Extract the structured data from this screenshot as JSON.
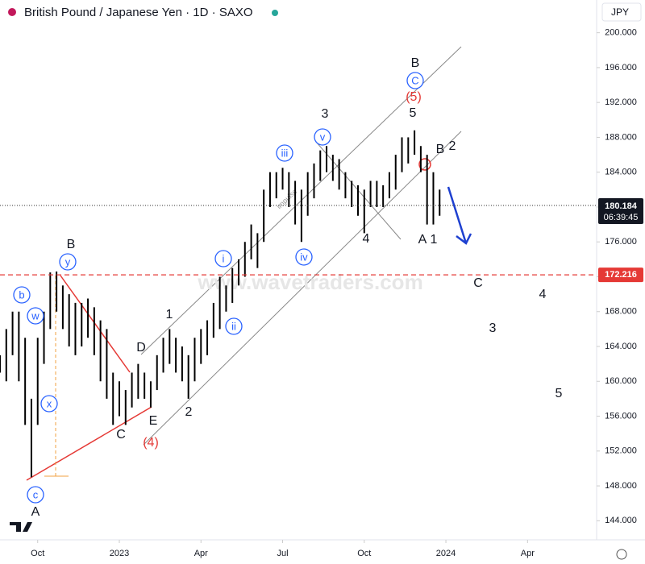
{
  "header": {
    "title": "British Pound / Japanese Yen · 1D · SAXO",
    "currency": "JPY"
  },
  "chart_data": {
    "type": "ohlc",
    "x": [
      -6,
      -5,
      -4,
      -3,
      -2,
      -1,
      0,
      1,
      2,
      3,
      4,
      5,
      6,
      7,
      8,
      9,
      10,
      11,
      12,
      13,
      14,
      15,
      16,
      17,
      18,
      19,
      20,
      21,
      22,
      23,
      24,
      25,
      26,
      27,
      28,
      29,
      30,
      31,
      32,
      33,
      34,
      35,
      36,
      37,
      38,
      39,
      40,
      41,
      42,
      43,
      44,
      45,
      46,
      47,
      48,
      49,
      50,
      51,
      52,
      53,
      54,
      55,
      56,
      57,
      58,
      59,
      60,
      61,
      62,
      63,
      64
    ],
    "high": [
      163,
      166,
      168,
      168,
      165,
      158,
      165,
      168,
      172.5,
      172.6,
      171,
      170,
      169,
      169,
      169.5,
      168.5,
      167,
      166,
      161,
      160,
      159,
      161,
      162,
      161,
      160,
      163,
      165,
      166,
      165,
      164,
      163,
      165,
      166,
      167,
      169,
      172,
      171,
      173,
      174,
      176,
      178,
      177,
      182,
      184,
      184,
      184.5,
      184,
      183,
      182,
      184,
      185,
      186.5,
      187,
      186,
      185.5,
      184,
      183,
      182.5,
      182,
      183,
      183,
      182.5,
      184,
      186,
      188,
      188,
      188.8,
      187,
      186,
      184,
      182
    ],
    "low": [
      161,
      160,
      163,
      160,
      155,
      149,
      155,
      162,
      166,
      168,
      166,
      164,
      163,
      164,
      165,
      163,
      160,
      158,
      155,
      156,
      155,
      157,
      158,
      158,
      157,
      159,
      161,
      162,
      161,
      160,
      158,
      160,
      162,
      163,
      165,
      166,
      168,
      169,
      171,
      172,
      174,
      173,
      176,
      180,
      181,
      182,
      180,
      178,
      176,
      179,
      181,
      183,
      184,
      183,
      182,
      181,
      180,
      179,
      177,
      180,
      180,
      180,
      181,
      182,
      184,
      185,
      186,
      184,
      178,
      178,
      179
    ],
    "color": "#000000",
    "xlim": [
      -6,
      89
    ],
    "xticks": [
      {
        "value": 0,
        "label": "Oct"
      },
      {
        "value": 13,
        "label": "2023"
      },
      {
        "value": 26,
        "label": "Apr"
      },
      {
        "value": 39,
        "label": "Jul"
      },
      {
        "value": 52,
        "label": "Oct"
      },
      {
        "value": 65,
        "label": "2024"
      },
      {
        "value": 78,
        "label": "Apr"
      }
    ],
    "ylim": [
      143.3,
      200.3
    ],
    "yticks": [
      {
        "value": 144,
        "label": "144.000"
      },
      {
        "value": 148,
        "label": "148.000"
      },
      {
        "value": 152,
        "label": "152.000"
      },
      {
        "value": 156,
        "label": "156.000"
      },
      {
        "value": 160,
        "label": "160.000"
      },
      {
        "value": 164,
        "label": "164.000"
      },
      {
        "value": 168,
        "label": "168.000"
      },
      {
        "value": 172,
        "label": "172.000"
      },
      {
        "value": 176,
        "label": "176.000"
      },
      {
        "value": 180,
        "label": "180.000"
      },
      {
        "value": 184,
        "label": "184.000"
      },
      {
        "value": 188,
        "label": "188.000"
      },
      {
        "value": 192,
        "label": "192.000"
      },
      {
        "value": 196,
        "label": "196.000"
      },
      {
        "value": 200,
        "label": "200.000"
      }
    ],
    "last_price": 180.184,
    "countdown": "06:39:45",
    "level": 172.216,
    "watermark": "www.wavetraders.com",
    "channel_label": "impulse",
    "annotations": [
      "B",
      "y",
      "b",
      "w",
      "x",
      "c",
      "A",
      "C",
      "E",
      "D",
      "(4)",
      "1",
      "2",
      "i",
      "ii",
      "iii",
      "iv",
      "v",
      "3",
      "4",
      "5",
      "(5)",
      "C",
      "B",
      "B",
      "2",
      "A",
      "1",
      "C",
      "4",
      "3",
      "5"
    ]
  }
}
